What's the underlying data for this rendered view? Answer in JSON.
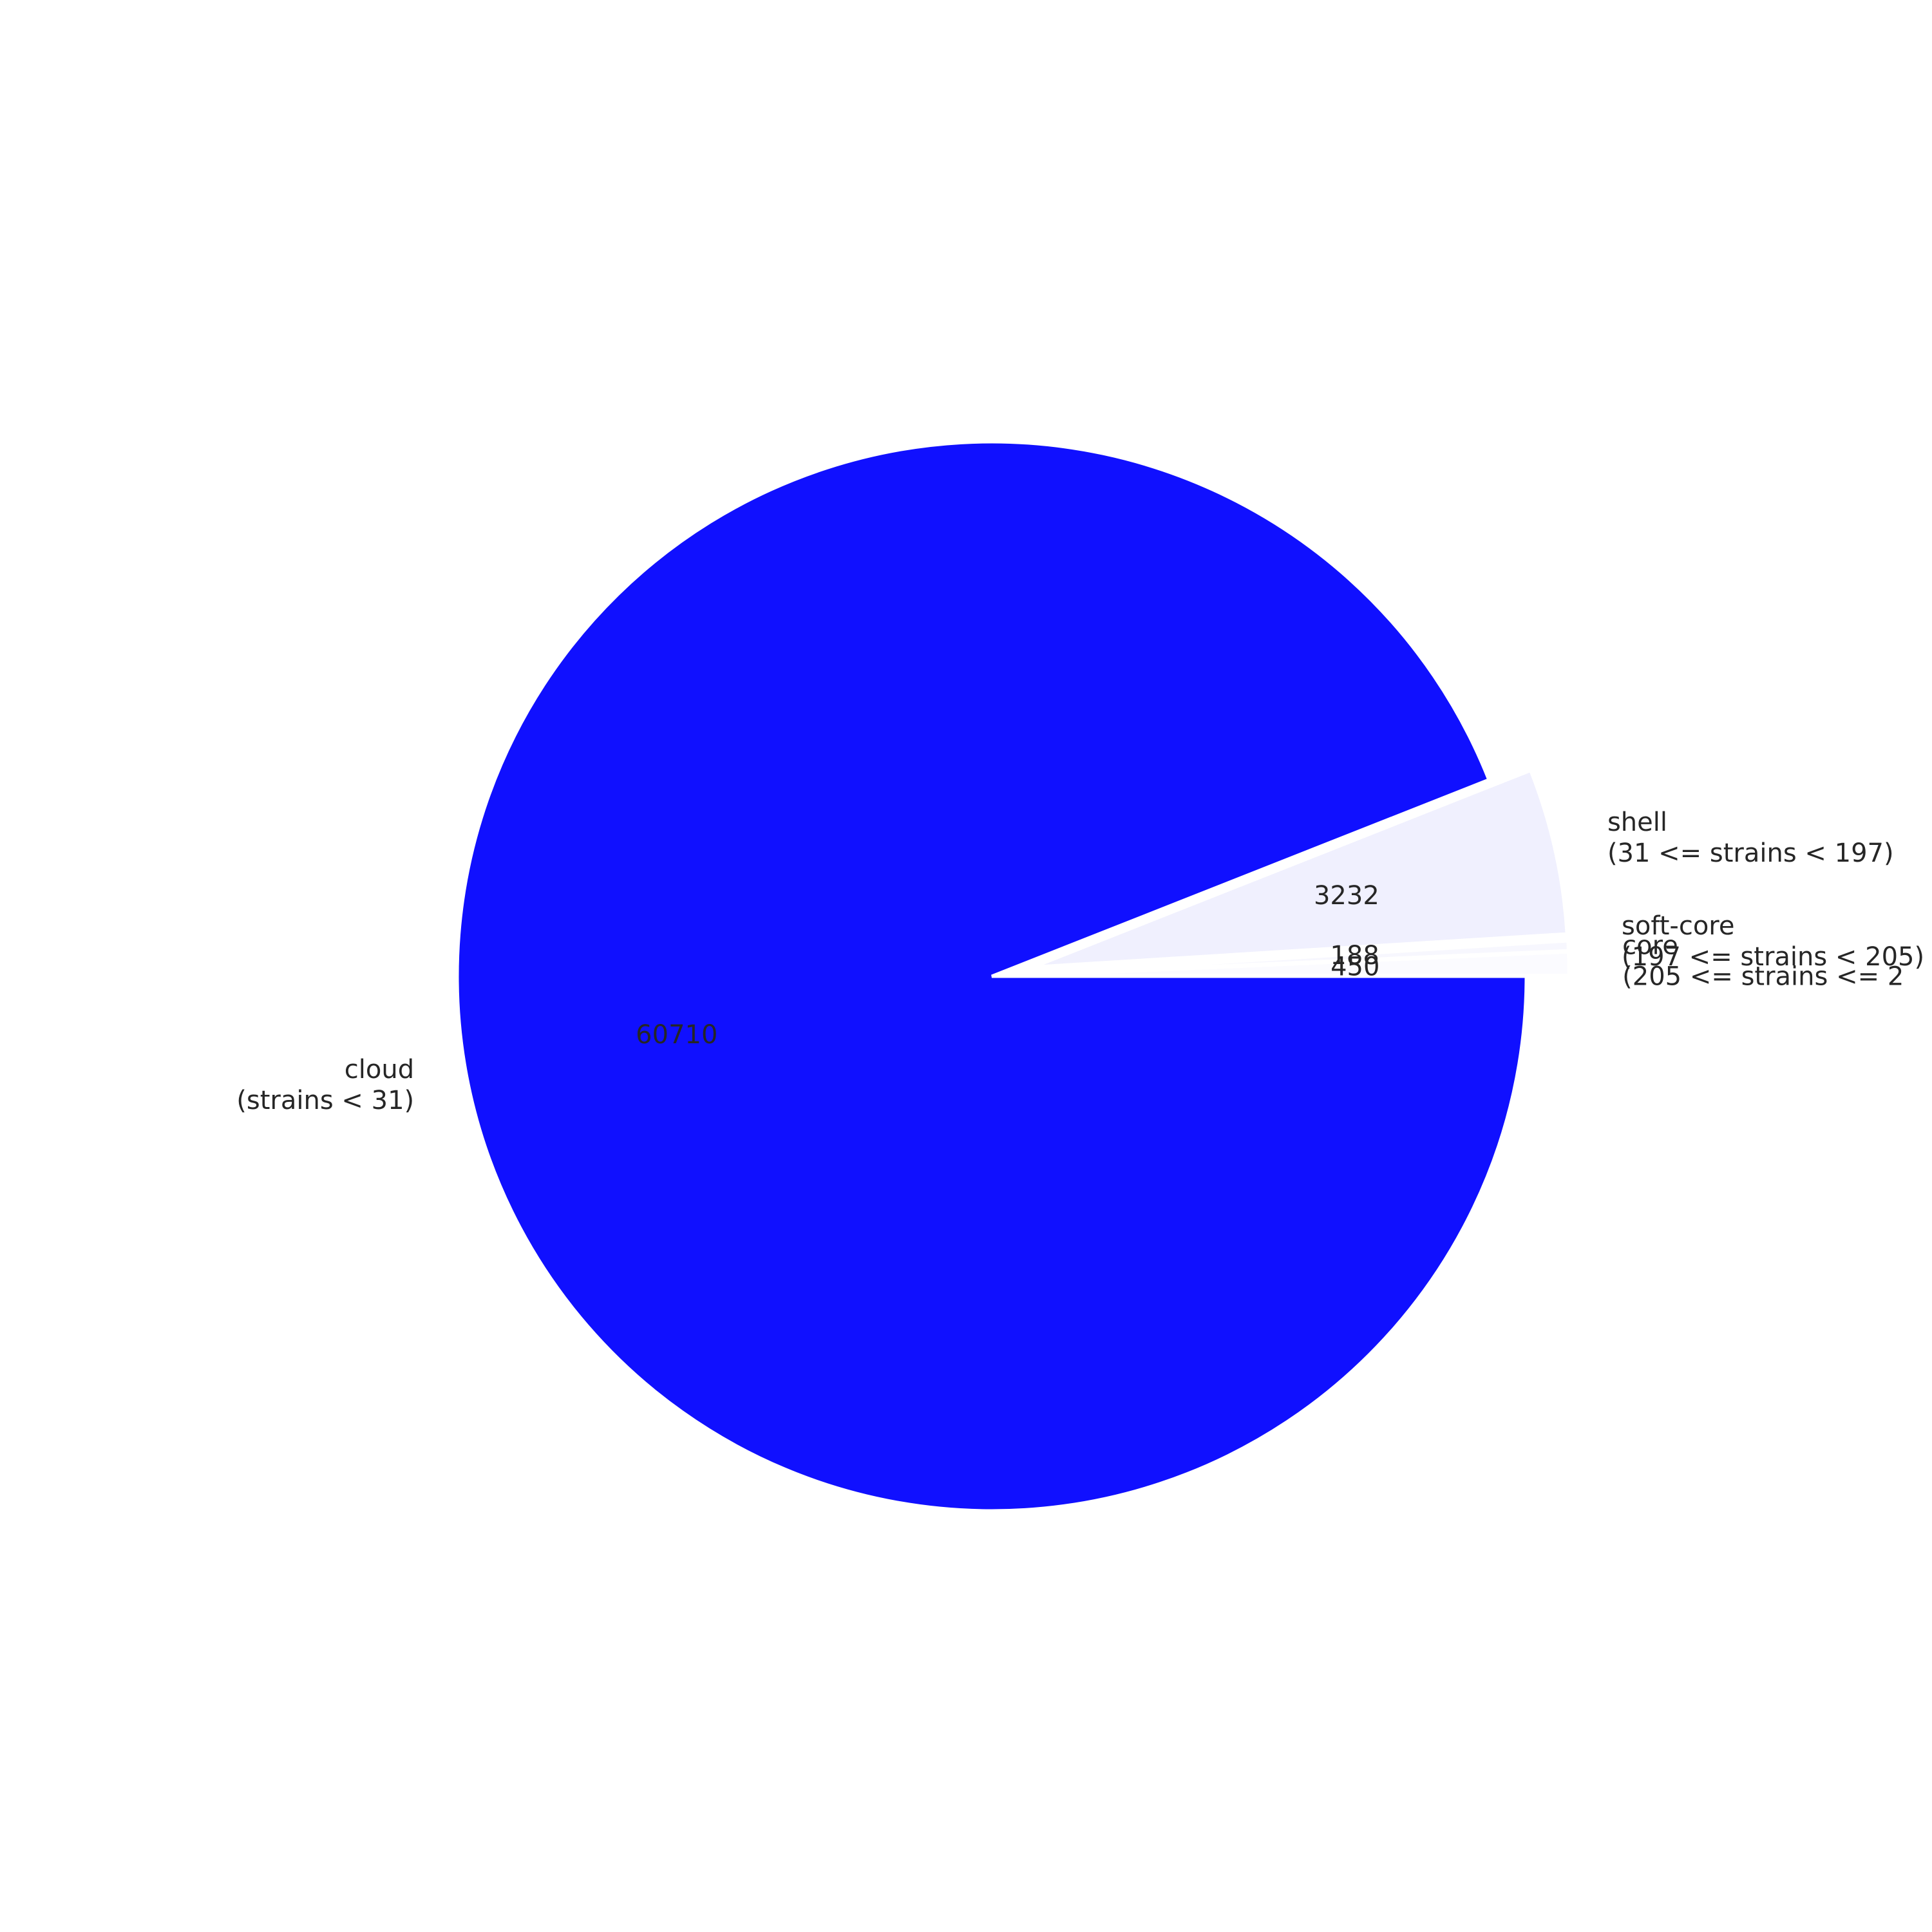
{
  "chart_data": {
    "type": "pie",
    "start_angle_deg": 0,
    "direction": "counterclockwise",
    "slices": [
      {
        "name": "core",
        "range": "(205 <= strains <= 2",
        "value": 450,
        "value_label": "450",
        "color": "#fbfbff",
        "exploded": true
      },
      {
        "name": "soft-core",
        "range": "(197 <= strains < 205)",
        "value": 188,
        "value_label": "188",
        "color": "#f7f7fe",
        "exploded": true
      },
      {
        "name": "shell",
        "range": "(31 <= strains < 197)",
        "value": 3232,
        "value_label": "3232",
        "color": "#f0f0fe",
        "exploded": true
      },
      {
        "name": "cloud",
        "range": "(strains < 31)",
        "value": 60710,
        "value_label": "60710",
        "color": "#1010ff",
        "exploded": false
      }
    ]
  }
}
